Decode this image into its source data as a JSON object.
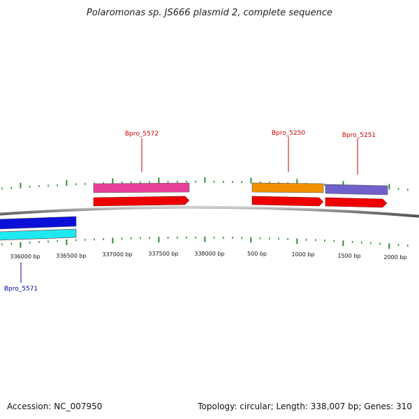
{
  "title": "Polaromonas sp. JS666 plasmid 2, complete sequence",
  "footer": {
    "accession": "Accession: NC_007950",
    "summary": "Topology: circular; Length: 338,007 bp; Genes: 310"
  },
  "colors": {
    "backbone": "#808080",
    "tick": "#2e8b2e",
    "forward_label": "#cc0000",
    "reverse_label": "#0000aa"
  },
  "axis": {
    "tick_labels": [
      "336000 bp",
      "336500 bp",
      "337000 bp",
      "337500 bp",
      "338000 bp",
      "500 bp",
      "1000 bp",
      "1500 bp",
      "2000 bp"
    ]
  },
  "genes": [
    {
      "label": "Bpro_5572",
      "strand": "forward",
      "gene_color": "#e8409a",
      "cds_color": "#ee0000"
    },
    {
      "label": "Bpro_5250",
      "strand": "forward",
      "gene_color": "#f29000",
      "cds_color": "#ee0000"
    },
    {
      "label": "Bpro_5251",
      "strand": "forward",
      "gene_color": "#7060cc",
      "cds_color": "#ee0000"
    },
    {
      "label": "Bpro_5571",
      "strand": "reverse",
      "gene_color": "#0a10d8",
      "cds_color": "#1ee8f0"
    }
  ]
}
